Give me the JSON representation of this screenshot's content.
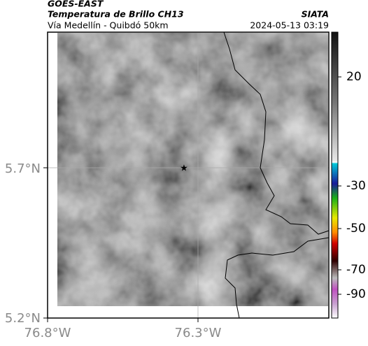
{
  "header": {
    "satellite": "GOES-EAST",
    "product": "Temperatura de Brillo CH13",
    "route": "Vía Medellín - Quibdó 50km",
    "source": "SIATA",
    "timestamp": "2024-05-13 03:19"
  },
  "map": {
    "lat_labels": [
      "5.7°N",
      "5.2°N"
    ],
    "lon_labels": [
      "76.8°W",
      "76.3°W"
    ]
  },
  "colorbar": {
    "ticks": [
      20,
      -30,
      -50,
      -70,
      -90
    ]
  }
}
